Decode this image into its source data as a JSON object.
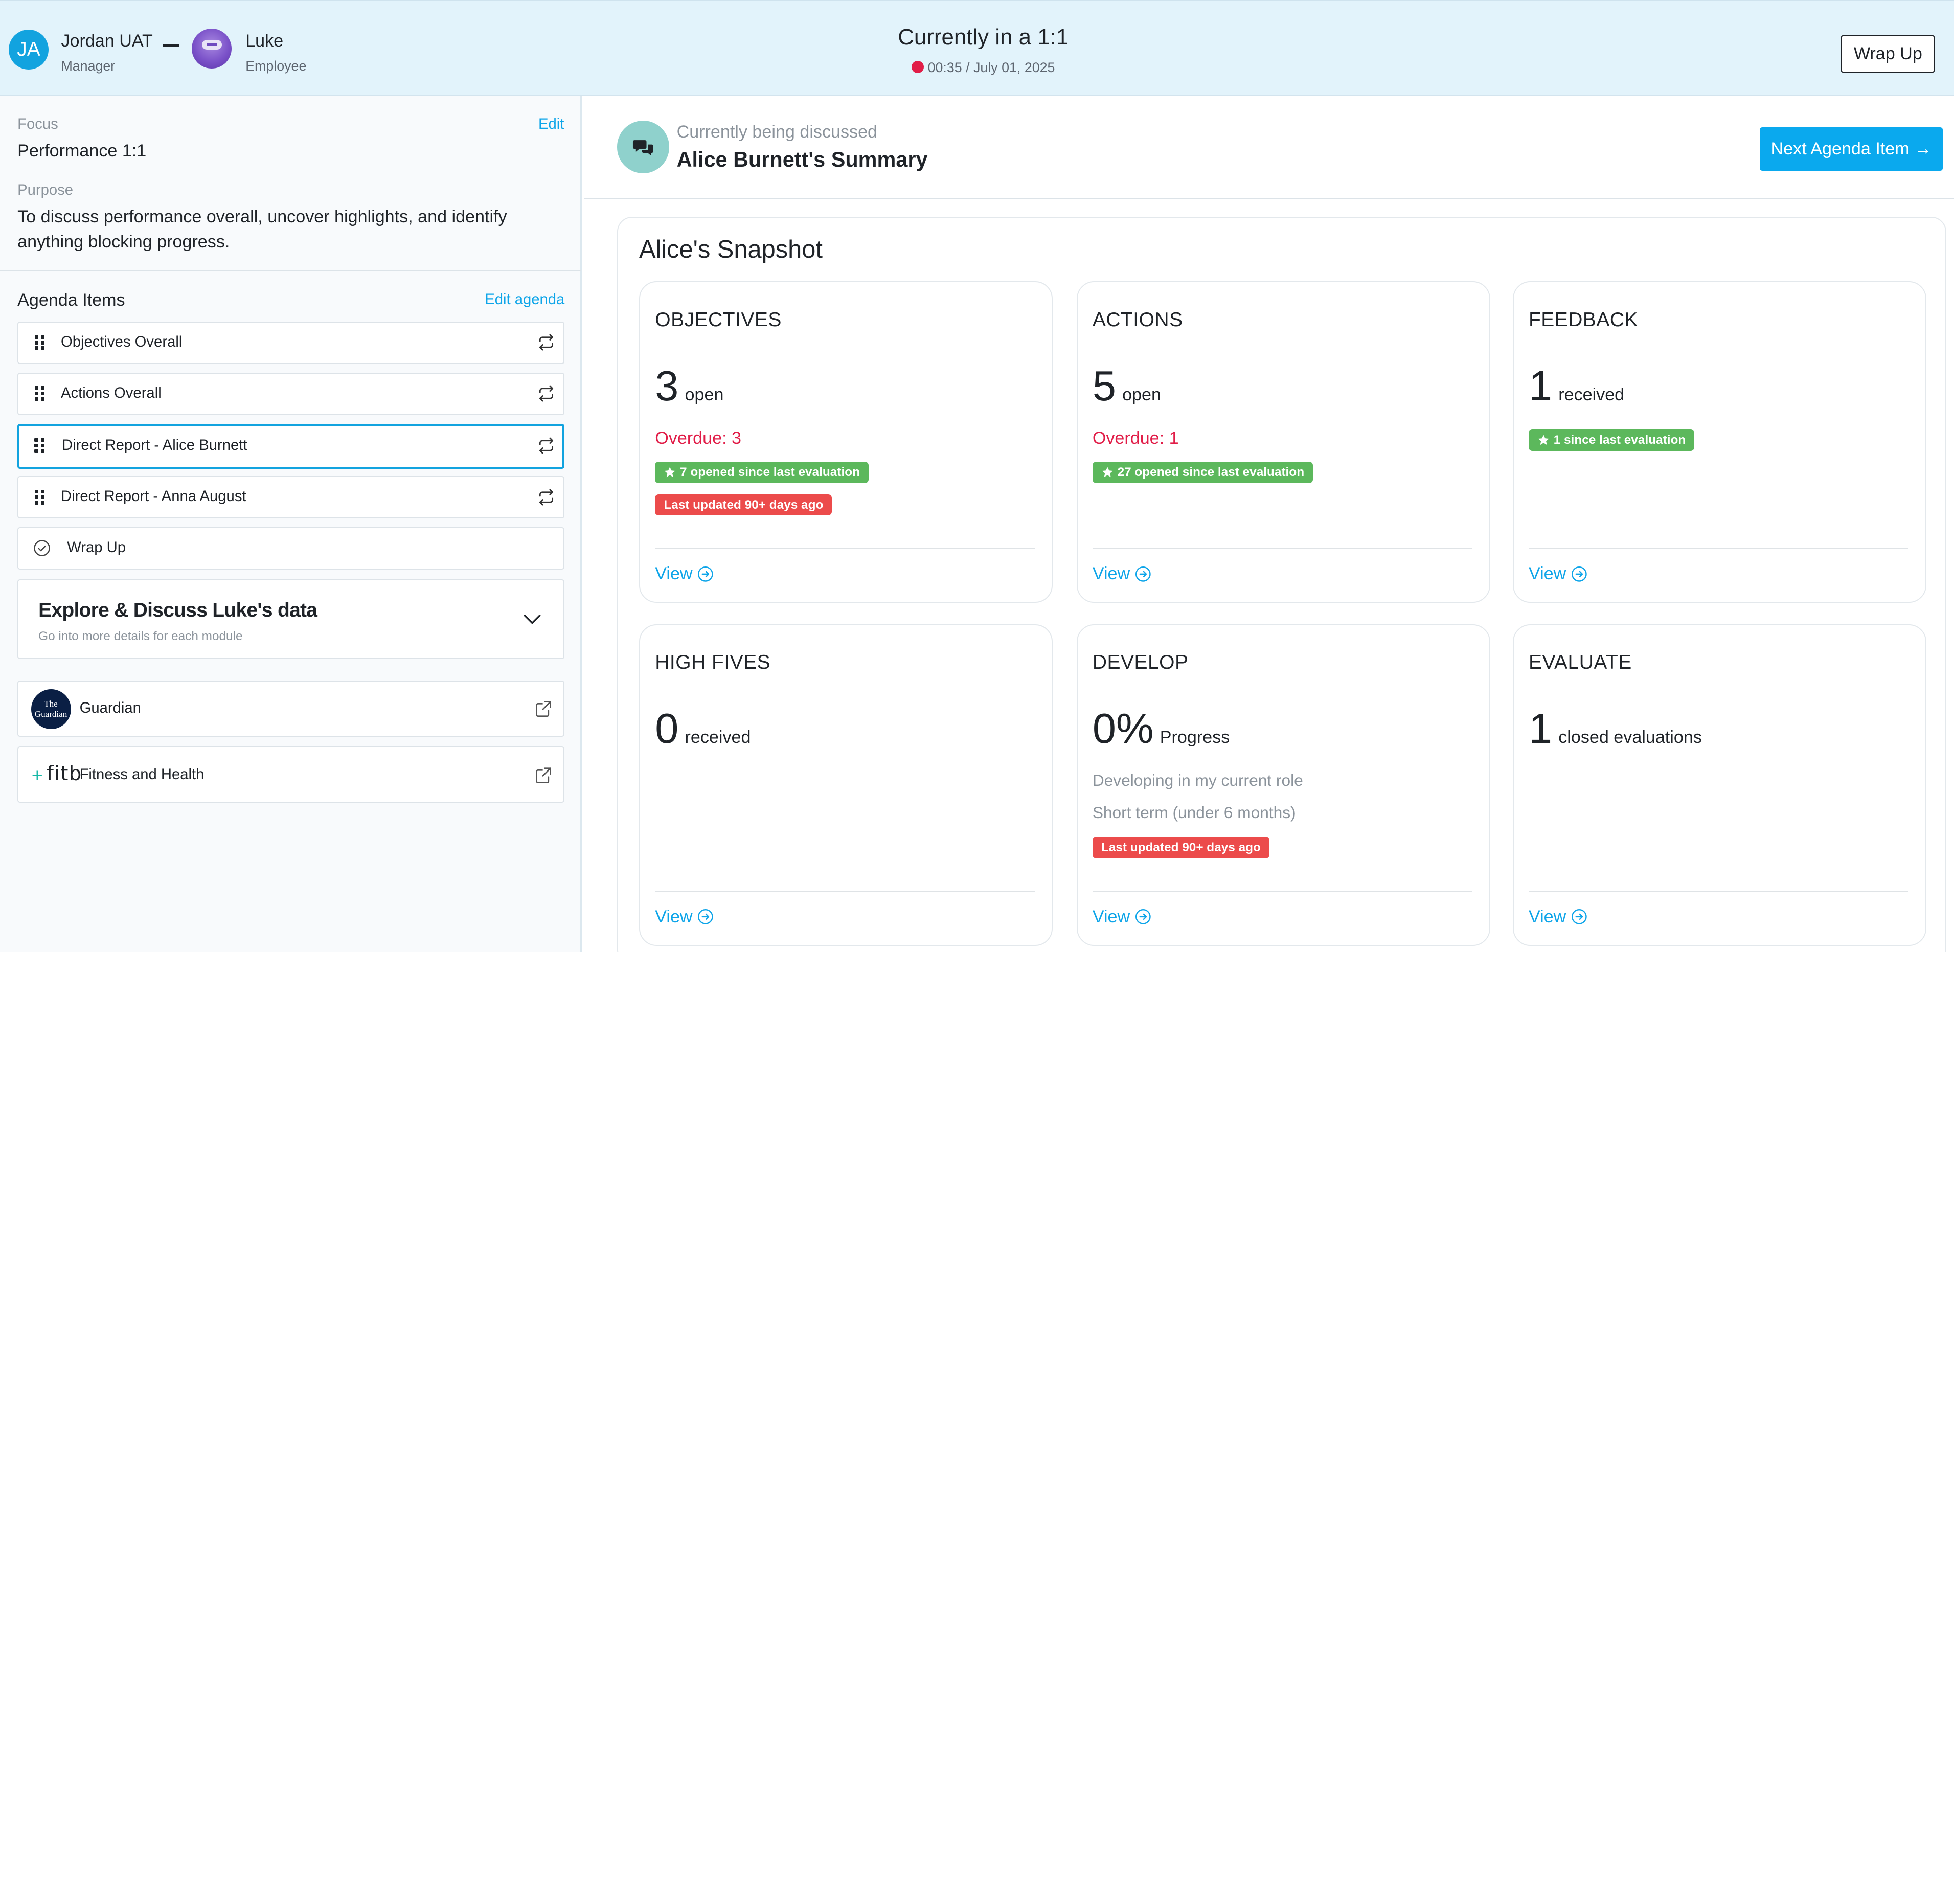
{
  "header": {
    "manager": {
      "initials": "JA",
      "name": "Jordan UAT",
      "role": "Manager"
    },
    "employee": {
      "name": "Luke",
      "role": "Employee"
    },
    "session_title": "Currently in a 1:1",
    "session_time": "00:35 / July 01, 2025",
    "wrap_up_label": "Wrap Up"
  },
  "sidebar": {
    "focus_label": "Focus",
    "edit_label": "Edit",
    "focus_value": "Performance 1:1",
    "purpose_label": "Purpose",
    "purpose_value": "To discuss performance overall, uncover highlights, and identify anything blocking progress.",
    "agenda_label": "Agenda Items",
    "edit_agenda_label": "Edit agenda",
    "agenda_items": [
      {
        "label": "Objectives Overall"
      },
      {
        "label": "Actions Overall"
      },
      {
        "label": "Direct Report - Alice Burnett"
      },
      {
        "label": "Direct Report - Anna August"
      },
      {
        "label": "Wrap Up"
      }
    ],
    "explore": {
      "title": "Explore & Discuss Luke's data",
      "subtitle": "Go into more details for each module"
    },
    "integrations": [
      {
        "label": "Guardian",
        "logo_text": "The Guardian"
      },
      {
        "label": "Fitness and Health",
        "logo_text": "fitb"
      }
    ]
  },
  "main": {
    "discussing_label": "Currently being discussed",
    "discussing_title": "Alice Burnett's Summary",
    "next_button_label": "Next Agenda Item →",
    "snapshot_title": "Alice's Snapshot",
    "view_label": "View",
    "cards": {
      "objectives": {
        "title": "OBJECTIVES",
        "value": "3",
        "unit": "open",
        "overdue": "Overdue: 3",
        "badge1": "7 opened since last evaluation",
        "badge2": "Last updated 90+ days ago"
      },
      "actions": {
        "title": "ACTIONS",
        "value": "5",
        "unit": "open",
        "overdue": "Overdue: 1",
        "badge1": "27 opened since last evaluation"
      },
      "feedback": {
        "title": "FEEDBACK",
        "value": "1",
        "unit": "received",
        "badge1": "1 since last evaluation"
      },
      "highfives": {
        "title": "HIGH FIVES",
        "value": "0",
        "unit": "received"
      },
      "develop": {
        "title": "DEVELOP",
        "value": "0%",
        "unit": "Progress",
        "line1": "Developing in my current role",
        "line2": "Short term (under 6 months)",
        "badge1": "Last updated 90+ days ago"
      },
      "evaluate": {
        "title": "EVALUATE",
        "value": "1",
        "unit": "closed evaluations"
      }
    }
  },
  "colors": {
    "accent": "#0ea5e9",
    "danger": "#e11d48",
    "success_badge": "#5cb85c",
    "danger_badge": "#ec4b4b",
    "header_bg": "#e2f3fb"
  },
  "icons": [
    "drag-handle-icon",
    "cycle-icon",
    "check-circle-icon",
    "chevron-down-icon",
    "external-link-icon",
    "chat-bubbles-icon",
    "star-icon",
    "arrow-circle-right-icon",
    "recording-dot-icon"
  ]
}
